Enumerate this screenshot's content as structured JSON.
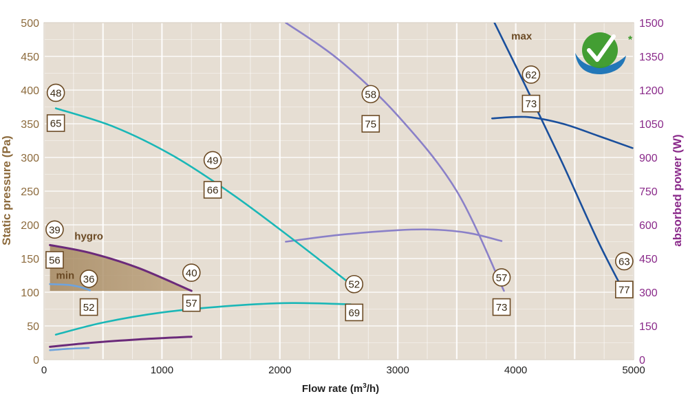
{
  "chart_data": {
    "type": "line",
    "xlabel_prefix": "Flow rate (m",
    "xlabel_sup": "3",
    "xlabel_suffix": "/h)",
    "ylabel": "Static pressure (Pa)",
    "y2label": "absorbed power (W)",
    "xlim": [
      0,
      5000
    ],
    "ylim": [
      0,
      500
    ],
    "y2lim": [
      0,
      1500
    ],
    "x_ticks": [
      "0",
      "1000",
      "2000",
      "3000",
      "4000",
      "5000"
    ],
    "y_ticks": [
      "0",
      "50",
      "100",
      "150",
      "200",
      "250",
      "300",
      "350",
      "400",
      "450",
      "500"
    ],
    "y2_ticks": [
      "0",
      "150",
      "300",
      "450",
      "600",
      "750",
      "900",
      "1050",
      "1200",
      "1350",
      "1500"
    ],
    "grid": true,
    "colors": {
      "background": "#e6ded3",
      "grid": "#ffffff",
      "left_axis": "#8c6a3c",
      "right_axis": "#8a2a8a",
      "min": "#6fa3dc",
      "hygro": "#6b2a7a",
      "teal": "#1ab7b7",
      "lavender": "#8a80c8",
      "max": "#1a4f9c",
      "label": "#6b4a24",
      "check_green": "#3a9a2a",
      "check_blue": "#2277b8"
    },
    "curve_labels": {
      "max": "max",
      "hygro": "hygro",
      "min": "min"
    },
    "pressure_curves": [
      {
        "key": "min",
        "color": "min",
        "points": [
          [
            50,
            112
          ],
          [
            200,
            111
          ],
          [
            300,
            108
          ],
          [
            390,
            103
          ]
        ]
      },
      {
        "key": "hygro",
        "color": "hygro",
        "points": [
          [
            50,
            170
          ],
          [
            400,
            158
          ],
          [
            800,
            136
          ],
          [
            1250,
            102
          ]
        ]
      },
      {
        "key": "teal",
        "color": "teal",
        "points": [
          [
            100,
            373
          ],
          [
            600,
            345
          ],
          [
            1100,
            302
          ],
          [
            1600,
            245
          ],
          [
            2100,
            180
          ],
          [
            2600,
            112
          ]
        ]
      },
      {
        "key": "lavender",
        "color": "lavender",
        "points": [
          [
            2050,
            500
          ],
          [
            2500,
            445
          ],
          [
            3000,
            362
          ],
          [
            3500,
            250
          ],
          [
            3900,
            102
          ]
        ]
      },
      {
        "key": "max",
        "color": "max",
        "points": [
          [
            3820,
            500
          ],
          [
            4100,
            400
          ],
          [
            4400,
            290
          ],
          [
            4700,
            175
          ],
          [
            4920,
            100
          ]
        ]
      }
    ],
    "power_curves": [
      {
        "key": "min",
        "color": "min",
        "points": [
          [
            50,
            42
          ],
          [
            200,
            48
          ],
          [
            380,
            52
          ]
        ]
      },
      {
        "key": "hygro",
        "color": "hygro",
        "points": [
          [
            50,
            57
          ],
          [
            400,
            75
          ],
          [
            800,
            90
          ],
          [
            1250,
            102
          ]
        ]
      },
      {
        "key": "teal",
        "color": "teal",
        "points": [
          [
            100,
            111
          ],
          [
            500,
            165
          ],
          [
            1000,
            210
          ],
          [
            1600,
            240
          ],
          [
            2100,
            252
          ],
          [
            2600,
            246
          ]
        ]
      },
      {
        "key": "lavender",
        "color": "lavender",
        "points": [
          [
            2050,
            525
          ],
          [
            2500,
            555
          ],
          [
            3000,
            576
          ],
          [
            3300,
            579
          ],
          [
            3600,
            564
          ],
          [
            3880,
            528
          ]
        ]
      },
      {
        "key": "max",
        "color": "max",
        "points": [
          [
            3800,
            1074
          ],
          [
            4100,
            1080
          ],
          [
            4400,
            1050
          ],
          [
            4700,
            996
          ],
          [
            4990,
            942
          ]
        ]
      }
    ],
    "hygro_area": {
      "top": [
        [
          50,
          170
        ],
        [
          400,
          158
        ],
        [
          800,
          136
        ],
        [
          1250,
          102
        ]
      ],
      "baseline": 102
    },
    "sound_power": [
      {
        "text": "48",
        "x": 100,
        "y": 396
      },
      {
        "text": "49",
        "x": 1430,
        "y": 296
      },
      {
        "text": "52",
        "x": 2630,
        "y": 112
      },
      {
        "text": "39",
        "x": 90,
        "y": 193
      },
      {
        "text": "36",
        "x": 380,
        "y": 120
      },
      {
        "text": "40",
        "x": 1250,
        "y": 129
      },
      {
        "text": "58",
        "x": 2770,
        "y": 394
      },
      {
        "text": "57",
        "x": 3880,
        "y": 122
      },
      {
        "text": "62",
        "x": 4130,
        "y": 423
      },
      {
        "text": "63",
        "x": 4920,
        "y": 146
      }
    ],
    "sound_pressure": [
      {
        "text": "65",
        "x": 100,
        "y": 351
      },
      {
        "text": "66",
        "x": 1430,
        "y": 252
      },
      {
        "text": "69",
        "x": 2630,
        "y": 70
      },
      {
        "text": "56",
        "x": 90,
        "y": 148
      },
      {
        "text": "52",
        "x": 380,
        "y": 78
      },
      {
        "text": "57",
        "x": 1250,
        "y": 84
      },
      {
        "text": "75",
        "x": 2770,
        "y": 350
      },
      {
        "text": "73",
        "x": 3880,
        "y": 78
      },
      {
        "text": "73",
        "x": 4130,
        "y": 380
      },
      {
        "text": "77",
        "x": 4920,
        "y": 104
      }
    ],
    "logo_mark": "*"
  }
}
